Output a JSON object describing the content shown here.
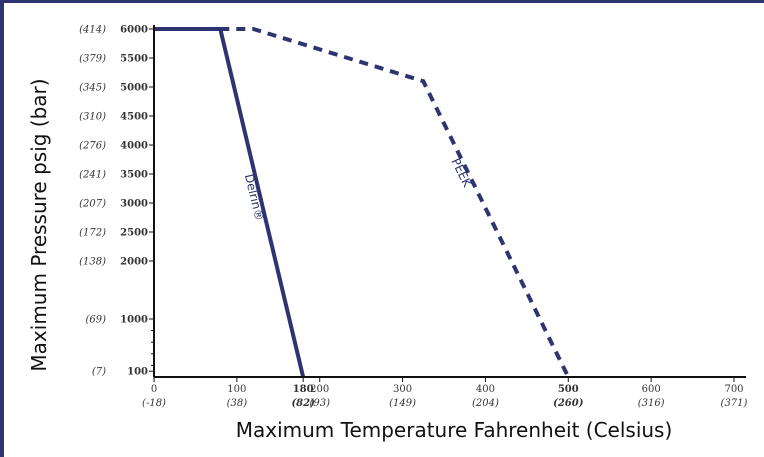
{
  "chart_data": {
    "type": "line",
    "title": "",
    "xlabel": "Maximum Temperature Fahrenheit (Celsius)",
    "ylabel": "Maximum Pressure psig (bar)",
    "xlim": [
      0,
      700
    ],
    "ylim": [
      0,
      6000
    ],
    "grid": false,
    "legend": "none",
    "y_ticks": [
      {
        "psig": 6000,
        "psig_label": "6000",
        "bar_label": "(414)"
      },
      {
        "psig": 5500,
        "psig_label": "5500",
        "bar_label": "(379)"
      },
      {
        "psig": 5000,
        "psig_label": "5000",
        "bar_label": "(345)"
      },
      {
        "psig": 4500,
        "psig_label": "4500",
        "bar_label": "(310)"
      },
      {
        "psig": 4000,
        "psig_label": "4000",
        "bar_label": "(276)"
      },
      {
        "psig": 3500,
        "psig_label": "3500",
        "bar_label": "(241)"
      },
      {
        "psig": 3000,
        "psig_label": "3000",
        "bar_label": "(207)"
      },
      {
        "psig": 2500,
        "psig_label": "2500",
        "bar_label": "(172)"
      },
      {
        "psig": 2000,
        "psig_label": "2000",
        "bar_label": "(138)"
      },
      {
        "psig": 1000,
        "psig_label": "1000",
        "bar_label": "(69)"
      },
      {
        "psig": 100,
        "psig_label": "100",
        "bar_label": "(7)"
      }
    ],
    "x_ticks": [
      {
        "f": 0,
        "f_label": "0",
        "c_label": "(-18)"
      },
      {
        "f": 100,
        "f_label": "100",
        "c_label": "(38)"
      },
      {
        "f": 180,
        "f_label": "180",
        "c_label": "(82)",
        "bold": true
      },
      {
        "f": 200,
        "f_label": "200",
        "c_label": "(93)"
      },
      {
        "f": 300,
        "f_label": "300",
        "c_label": "(149)"
      },
      {
        "f": 400,
        "f_label": "400",
        "c_label": "(204)"
      },
      {
        "f": 500,
        "f_label": "500",
        "c_label": "(260)",
        "bold": true
      },
      {
        "f": 600,
        "f_label": "600",
        "c_label": "(316)"
      },
      {
        "f": 700,
        "f_label": "700",
        "c_label": "(371)"
      }
    ],
    "series": [
      {
        "name": "Delrin®",
        "style": "solid",
        "color": "#2d3470",
        "x": [
          0,
          80,
          180
        ],
        "y": [
          6000,
          6000,
          0
        ]
      },
      {
        "name": "PEEK",
        "style": "dashed",
        "color": "#2d3470",
        "x": [
          80,
          120,
          325,
          500
        ],
        "y": [
          6000,
          6000,
          5100,
          0
        ]
      }
    ]
  }
}
